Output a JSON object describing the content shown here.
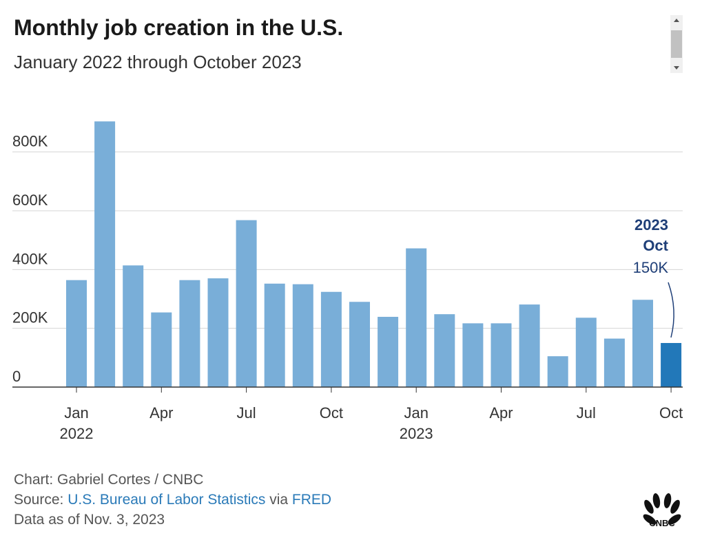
{
  "header": {
    "title": "Monthly job creation in the U.S.",
    "subtitle": "January 2022 through October 2023"
  },
  "chart_data": {
    "type": "bar",
    "categories": [
      "Jan 2022",
      "Feb 2022",
      "Mar 2022",
      "Apr 2022",
      "May 2022",
      "Jun 2022",
      "Jul 2022",
      "Aug 2022",
      "Sep 2022",
      "Oct 2022",
      "Nov 2022",
      "Dec 2022",
      "Jan 2023",
      "Feb 2023",
      "Mar 2023",
      "Apr 2023",
      "May 2023",
      "Jun 2023",
      "Jul 2023",
      "Aug 2023",
      "Sep 2023",
      "Oct 2023"
    ],
    "values": [
      364,
      904,
      414,
      254,
      364,
      370,
      568,
      352,
      350,
      324,
      290,
      239,
      472,
      248,
      217,
      217,
      281,
      105,
      236,
      165,
      297,
      150
    ],
    "ylim": [
      0,
      900
    ],
    "yticks": [
      0,
      200,
      400,
      600,
      800
    ],
    "ytick_labels": [
      "0",
      "200K",
      "400K",
      "600K",
      "800K"
    ],
    "xticks": [
      {
        "index": 0,
        "label": "Jan",
        "sublabel": "2022"
      },
      {
        "index": 3,
        "label": "Apr",
        "sublabel": ""
      },
      {
        "index": 6,
        "label": "Jul",
        "sublabel": ""
      },
      {
        "index": 9,
        "label": "Oct",
        "sublabel": ""
      },
      {
        "index": 12,
        "label": "Jan",
        "sublabel": "2023"
      },
      {
        "index": 15,
        "label": "Apr",
        "sublabel": ""
      },
      {
        "index": 18,
        "label": "Jul",
        "sublabel": ""
      },
      {
        "index": 21,
        "label": "Oct",
        "sublabel": ""
      }
    ],
    "grid": true,
    "colors": {
      "bar": "#79aed8",
      "highlight": "#2278b9",
      "grid": "#d4d4d4",
      "annotation": "#1f3f78"
    },
    "annotation": {
      "index": 21,
      "line1": "2023",
      "line2": "Oct",
      "value": "150K"
    }
  },
  "footer": {
    "credit": "Chart: Gabriel Cortes / CNBC",
    "source_prefix": "Source: ",
    "source_link1": "U.S. Bureau of Labor Statistics",
    "source_via": " via ",
    "source_link2": "FRED",
    "data_as_of": "Data as of Nov. 3, 2023"
  },
  "logo": {
    "icon": "peacock-icon",
    "text": "CNBC"
  }
}
